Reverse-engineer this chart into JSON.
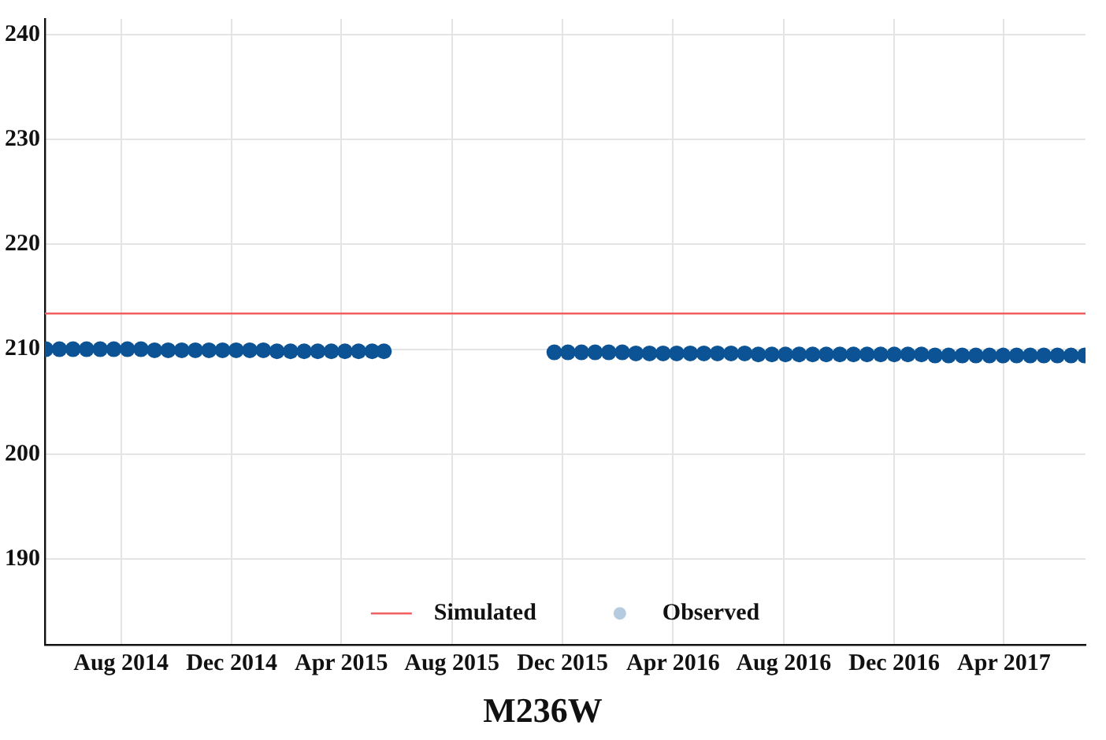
{
  "chart_data": {
    "type": "scatter",
    "title": "M236W",
    "xlim": [
      "2014-05-09",
      "2017-06-30"
    ],
    "xticks": [
      {
        "value": "2014-08-01",
        "label": "Aug 2014"
      },
      {
        "value": "2014-12-01",
        "label": "Dec 2014"
      },
      {
        "value": "2015-04-01",
        "label": "Apr 2015"
      },
      {
        "value": "2015-08-01",
        "label": "Aug 2015"
      },
      {
        "value": "2015-12-01",
        "label": "Dec 2015"
      },
      {
        "value": "2016-04-01",
        "label": "Apr 2016"
      },
      {
        "value": "2016-08-01",
        "label": "Aug 2016"
      },
      {
        "value": "2016-12-01",
        "label": "Dec 2016"
      },
      {
        "value": "2017-04-01",
        "label": "Apr 2017"
      }
    ],
    "ylim": [
      181.8,
      241.5
    ],
    "yticks": [
      190,
      200,
      210,
      220,
      230,
      240
    ],
    "grid": true,
    "legend": "bottom",
    "series": [
      {
        "name": "Simulated",
        "type": "line",
        "color": "#f06060",
        "line_style": "solid",
        "x": [
          "2014-05-09",
          "2017-06-30"
        ],
        "values": [
          213.4,
          213.4
        ]
      },
      {
        "name": "Observed",
        "marker": "circle",
        "color": "#0b5394",
        "x": [
          "2014-05-10",
          "2014-05-25",
          "2014-06-09",
          "2014-06-24",
          "2014-07-09",
          "2014-07-24",
          "2014-08-08",
          "2014-08-23",
          "2014-09-07",
          "2014-09-22",
          "2014-10-07",
          "2014-10-22",
          "2014-11-06",
          "2014-11-21",
          "2014-12-06",
          "2014-12-21",
          "2015-01-05",
          "2015-01-20",
          "2015-02-04",
          "2015-02-19",
          "2015-03-06",
          "2015-03-21",
          "2015-04-05",
          "2015-04-20",
          "2015-05-05",
          "2015-05-18",
          "2015-11-22",
          "2015-12-07",
          "2015-12-22",
          "2016-01-06",
          "2016-01-21",
          "2016-02-05",
          "2016-02-20",
          "2016-03-06",
          "2016-03-21",
          "2016-04-05",
          "2016-04-20",
          "2016-05-05",
          "2016-05-20",
          "2016-06-04",
          "2016-06-19",
          "2016-07-04",
          "2016-07-19",
          "2016-08-03",
          "2016-08-18",
          "2016-09-02",
          "2016-09-17",
          "2016-10-02",
          "2016-10-17",
          "2016-11-01",
          "2016-11-16",
          "2016-12-01",
          "2016-12-16",
          "2016-12-31",
          "2017-01-15",
          "2017-01-30",
          "2017-02-14",
          "2017-03-01",
          "2017-03-16",
          "2017-03-31",
          "2017-04-15",
          "2017-04-30",
          "2017-05-15",
          "2017-05-30",
          "2017-06-14",
          "2017-06-29"
        ],
        "values": [
          210.0,
          210.0,
          210.0,
          210.0,
          210.0,
          210.0,
          210.0,
          210.0,
          209.9,
          209.9,
          209.9,
          209.9,
          209.9,
          209.9,
          209.9,
          209.9,
          209.9,
          209.8,
          209.8,
          209.8,
          209.8,
          209.8,
          209.8,
          209.8,
          209.8,
          209.8,
          209.7,
          209.7,
          209.7,
          209.7,
          209.7,
          209.7,
          209.6,
          209.6,
          209.6,
          209.6,
          209.6,
          209.6,
          209.6,
          209.6,
          209.6,
          209.5,
          209.5,
          209.5,
          209.5,
          209.5,
          209.5,
          209.5,
          209.5,
          209.5,
          209.5,
          209.5,
          209.5,
          209.5,
          209.4,
          209.4,
          209.4,
          209.4,
          209.4,
          209.4,
          209.4,
          209.4,
          209.4,
          209.4,
          209.4,
          209.4
        ]
      }
    ]
  }
}
